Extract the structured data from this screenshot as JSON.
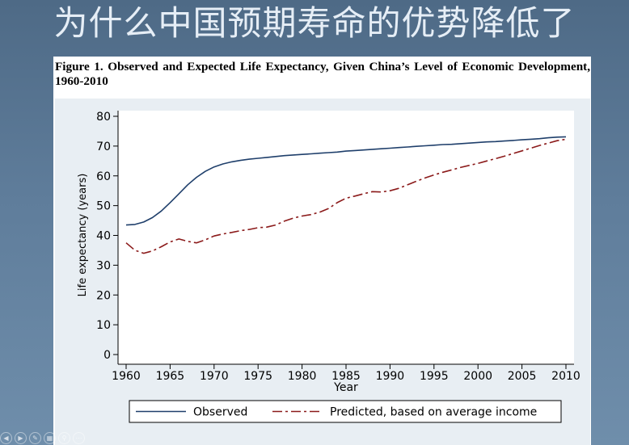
{
  "slide": {
    "title": "为什么中国预期寿命的优势降低了"
  },
  "figure": {
    "caption": "Figure 1. Observed and Expected Life Expectancy, Given China’s Level of Economic Development, 1960-2010"
  },
  "chart_data": {
    "type": "line",
    "xlabel": "Year",
    "ylabel": "Life expectancy (years)",
    "xlim": [
      1960,
      2010
    ],
    "ylim": [
      0,
      80
    ],
    "x_ticks": [
      1960,
      1965,
      1970,
      1975,
      1980,
      1985,
      1990,
      1995,
      2000,
      2005,
      2010
    ],
    "y_ticks": [
      0,
      10,
      20,
      30,
      40,
      50,
      60,
      70,
      80
    ],
    "grid": false,
    "legend_position": "bottom",
    "series": [
      {
        "name": "Observed",
        "color": "#1f3f6b",
        "style": "solid",
        "points": [
          [
            1960,
            43.5
          ],
          [
            1961,
            43.7
          ],
          [
            1962,
            44.5
          ],
          [
            1963,
            46.0
          ],
          [
            1964,
            48.2
          ],
          [
            1965,
            51.0
          ],
          [
            1966,
            54.0
          ],
          [
            1967,
            57.0
          ],
          [
            1968,
            59.5
          ],
          [
            1969,
            61.5
          ],
          [
            1970,
            63.0
          ],
          [
            1971,
            64.0
          ],
          [
            1972,
            64.7
          ],
          [
            1973,
            65.2
          ],
          [
            1974,
            65.6
          ],
          [
            1975,
            65.9
          ],
          [
            1976,
            66.2
          ],
          [
            1977,
            66.5
          ],
          [
            1978,
            66.8
          ],
          [
            1979,
            67.0
          ],
          [
            1980,
            67.2
          ],
          [
            1981,
            67.4
          ],
          [
            1982,
            67.6
          ],
          [
            1983,
            67.8
          ],
          [
            1984,
            68.0
          ],
          [
            1985,
            68.3
          ],
          [
            1986,
            68.5
          ],
          [
            1987,
            68.7
          ],
          [
            1988,
            68.9
          ],
          [
            1989,
            69.1
          ],
          [
            1990,
            69.3
          ],
          [
            1991,
            69.5
          ],
          [
            1992,
            69.7
          ],
          [
            1993,
            69.9
          ],
          [
            1994,
            70.1
          ],
          [
            1995,
            70.3
          ],
          [
            1996,
            70.5
          ],
          [
            1997,
            70.6
          ],
          [
            1998,
            70.8
          ],
          [
            1999,
            71.0
          ],
          [
            2000,
            71.2
          ],
          [
            2001,
            71.4
          ],
          [
            2002,
            71.5
          ],
          [
            2003,
            71.7
          ],
          [
            2004,
            71.9
          ],
          [
            2005,
            72.1
          ],
          [
            2006,
            72.3
          ],
          [
            2007,
            72.5
          ],
          [
            2008,
            72.8
          ],
          [
            2009,
            73.0
          ],
          [
            2010,
            73.1
          ]
        ]
      },
      {
        "name": "Predicted, based on average income",
        "color": "#8b1a1a",
        "style": "dashed",
        "points": [
          [
            1960,
            37.5
          ],
          [
            1961,
            35.0
          ],
          [
            1962,
            34.0
          ],
          [
            1963,
            34.8
          ],
          [
            1964,
            36.2
          ],
          [
            1965,
            37.8
          ],
          [
            1966,
            38.8
          ],
          [
            1967,
            38.0
          ],
          [
            1968,
            37.5
          ],
          [
            1969,
            38.5
          ],
          [
            1970,
            39.8
          ],
          [
            1971,
            40.5
          ],
          [
            1972,
            41.0
          ],
          [
            1973,
            41.6
          ],
          [
            1974,
            42.0
          ],
          [
            1975,
            42.6
          ],
          [
            1976,
            42.8
          ],
          [
            1977,
            43.5
          ],
          [
            1978,
            44.8
          ],
          [
            1979,
            45.8
          ],
          [
            1980,
            46.5
          ],
          [
            1981,
            47.0
          ],
          [
            1982,
            47.8
          ],
          [
            1983,
            49.0
          ],
          [
            1984,
            51.0
          ],
          [
            1985,
            52.5
          ],
          [
            1986,
            53.2
          ],
          [
            1987,
            54.0
          ],
          [
            1988,
            54.7
          ],
          [
            1989,
            54.6
          ],
          [
            1990,
            55.0
          ],
          [
            1991,
            55.8
          ],
          [
            1992,
            57.0
          ],
          [
            1993,
            58.2
          ],
          [
            1994,
            59.3
          ],
          [
            1995,
            60.3
          ],
          [
            1996,
            61.2
          ],
          [
            1997,
            62.0
          ],
          [
            1998,
            62.8
          ],
          [
            1999,
            63.5
          ],
          [
            2000,
            64.2
          ],
          [
            2001,
            65.0
          ],
          [
            2002,
            65.8
          ],
          [
            2003,
            66.6
          ],
          [
            2004,
            67.5
          ],
          [
            2005,
            68.4
          ],
          [
            2006,
            69.3
          ],
          [
            2007,
            70.2
          ],
          [
            2008,
            71.0
          ],
          [
            2009,
            71.8
          ],
          [
            2010,
            72.3
          ]
        ]
      }
    ]
  },
  "colors": {
    "axis": "#000000",
    "plot_background": "#e8eef3",
    "legend_background": "#ffffff"
  },
  "toolbar": {
    "icons": [
      "prev-icon",
      "next-icon",
      "pen-icon",
      "slides-icon",
      "zoom-icon",
      "more-icon"
    ],
    "glyphs": [
      "◀",
      "▶",
      "✎",
      "▦",
      "⚲",
      "⋯"
    ]
  }
}
